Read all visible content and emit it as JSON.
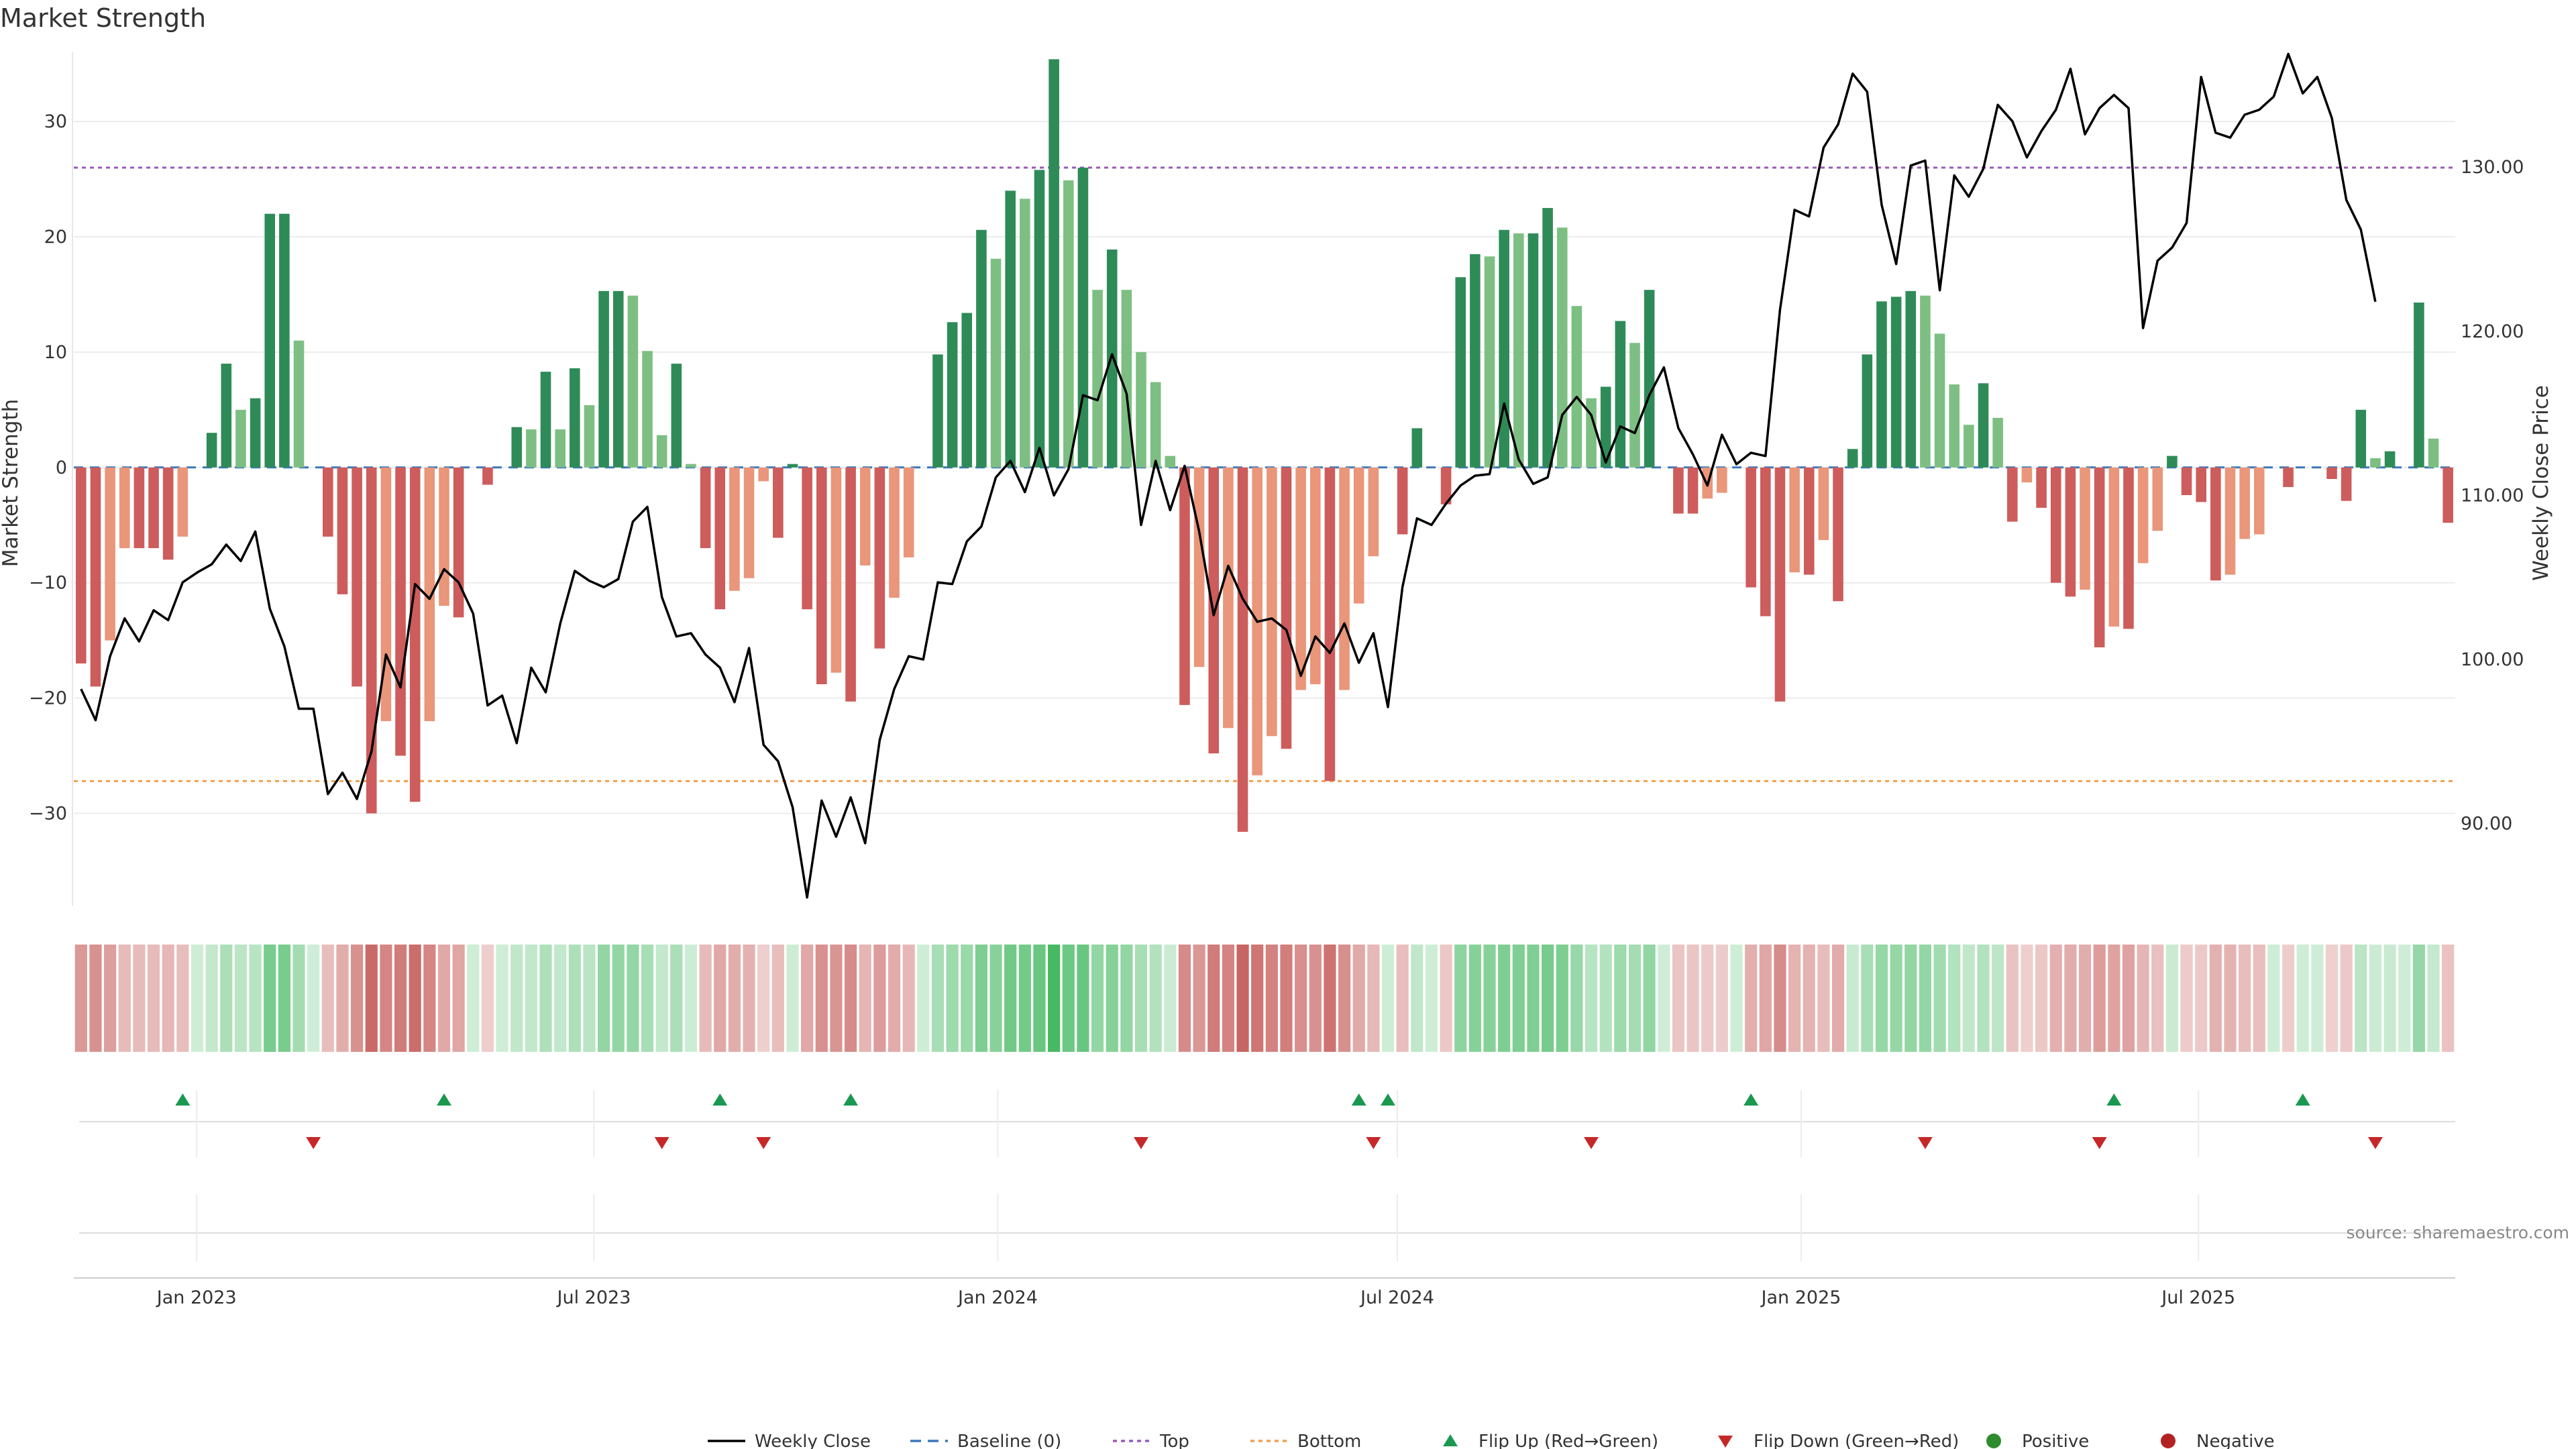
{
  "chart_data": {
    "type": "bar",
    "title": "Market Strength",
    "ylabel": "Market Strength",
    "y2label": "Weekly Close Price",
    "ylim": [
      -38,
      36
    ],
    "y2lim": [
      85,
      137
    ],
    "yticks": [
      30,
      20,
      10,
      0,
      -10,
      -20,
      -30
    ],
    "y2ticks": [
      "130.00",
      "120.00",
      "110.00",
      "100.00",
      "90.00"
    ],
    "y2tick_values": [
      130,
      120,
      110,
      100,
      90
    ],
    "top_level": 26,
    "bottom_level": -27.2,
    "baseline": 0,
    "x_start": "2022-11-06",
    "x_end": "2025-10-26",
    "x_tick_labels": [
      "Jan 2023",
      "Jul 2023",
      "Jan 2024",
      "Jul 2024",
      "Jan 2025",
      "Jul 2025"
    ],
    "x_tick_dates": [
      "2023-01-01",
      "2023-07-01",
      "2024-01-01",
      "2024-07-01",
      "2025-01-01",
      "2025-07-01"
    ],
    "strength": [
      -17,
      -19,
      -15,
      -7,
      -7,
      -7,
      -8,
      -6,
      0,
      3,
      9,
      5,
      6,
      22,
      22,
      11,
      0,
      -6,
      -11,
      -19,
      -30,
      -22,
      -25,
      -29,
      -22,
      -12,
      -13,
      0,
      -1.5,
      0,
      3.5,
      3.3,
      8.3,
      3.3,
      8.6,
      5.4,
      15.3,
      15.3,
      14.9,
      10.1,
      2.8,
      9,
      0.3,
      -7,
      -12.3,
      -10.7,
      -9.6,
      -1.2,
      -6.1,
      0.3,
      -12.3,
      -18.8,
      -17.8,
      -20.3,
      -8.5,
      -15.7,
      -11.3,
      -7.8,
      0,
      9.8,
      12.6,
      13.4,
      20.6,
      18.1,
      24,
      23.3,
      25.8,
      35.4,
      24.9,
      26,
      15.4,
      18.9,
      15.4,
      10,
      7.4,
      1,
      -20.6,
      -17.3,
      -24.8,
      -22.6,
      -31.6,
      -26.7,
      -23.3,
      -24.4,
      -19.3,
      -18.8,
      -27.2,
      -19.3,
      -11.8,
      -7.7,
      0,
      -5.8,
      3.4,
      0,
      -3.2,
      16.5,
      18.5,
      18.3,
      20.6,
      20.3,
      20.3,
      22.5,
      20.8,
      14,
      6,
      7,
      12.7,
      10.8,
      15.4,
      0,
      -4,
      -4,
      -2.7,
      -2.2,
      0,
      -10.4,
      -12.9,
      -20.3,
      -9.1,
      -9.3,
      -6.3,
      -11.6,
      1.6,
      9.8,
      14.4,
      14.8,
      15.3,
      14.9,
      11.6,
      7.2,
      3.7,
      7.3,
      4.3,
      -4.7,
      -1.3,
      -3.5,
      -10,
      -11.2,
      -10.6,
      -15.6,
      -13.8,
      -14,
      -8.3,
      -5.5,
      1,
      -2.4,
      -3,
      -9.8,
      -9.3,
      -6.2,
      -5.8,
      0,
      -1.7,
      0,
      0,
      -1,
      -2.9,
      5,
      0.8,
      1.4,
      0,
      14.3,
      2.5,
      -4.8
    ],
    "close": [
      98.2,
      96.3,
      100.2,
      102.5,
      101.1,
      103,
      102.4,
      104.7,
      105.3,
      105.8,
      107,
      106,
      107.8,
      103.1,
      100.8,
      97,
      97,
      91.8,
      93.1,
      91.5,
      94.4,
      100.3,
      98.3,
      104.6,
      103.7,
      105.5,
      104.7,
      102.8,
      97.2,
      97.8,
      94.9,
      99.5,
      98,
      102.2,
      105.4,
      104.8,
      104.4,
      104.9,
      108.4,
      109.3,
      103.8,
      101.4,
      101.6,
      100.3,
      99.5,
      97.4,
      100.7,
      94.8,
      93.8,
      91,
      85.5,
      91.4,
      89.2,
      91.6,
      88.8,
      95.1,
      98.2,
      100.2,
      100,
      104.7,
      104.6,
      107.2,
      108.1,
      111.1,
      112.1,
      110.2,
      112.9,
      110,
      111.6,
      116.1,
      115.8,
      118.6,
      116.2,
      108.2,
      112.1,
      109.1,
      111.8,
      107.8,
      102.7,
      105.7,
      103.7,
      102.3,
      102.5,
      101.8,
      99,
      101.4,
      100.4,
      102.2,
      99.8,
      101.6,
      97.1,
      104.4,
      108.6,
      108.2,
      109.5,
      110.6,
      111.2,
      111.3,
      115.6,
      112.2,
      110.7,
      111.1,
      114.9,
      116,
      114.9,
      112,
      114.2,
      113.8,
      116.1,
      117.8,
      114.1,
      112.5,
      110.6,
      113.7,
      111.9,
      112.6,
      112.4,
      121.3,
      127.4,
      127,
      131.2,
      132.6,
      135.7,
      134.6,
      127.7,
      124.1,
      130.1,
      130.4,
      122.5,
      129.5,
      128.2,
      129.9,
      133.8,
      132.8,
      130.6,
      132.2,
      133.5,
      136,
      132,
      133.6,
      134.4,
      133.6,
      120.2,
      124.3,
      125.1,
      126.6,
      135.5,
      132.1,
      131.8,
      133.2,
      133.5,
      134.3,
      136.9,
      134.5,
      135.5,
      133,
      128,
      126.2,
      121.8
    ]
  },
  "heatmap_label": "",
  "flip_up_weeks": [
    7,
    25,
    44,
    53,
    88,
    90,
    115,
    140,
    153
  ],
  "flip_down_weeks": [
    16,
    40,
    47,
    73,
    89,
    104,
    127,
    139,
    158
  ],
  "legend": {
    "weekly_close": "Weekly Close",
    "baseline": "Baseline (0)",
    "top": "Top",
    "bottom": "Bottom",
    "flip_up": "Flip Up (Red→Green)",
    "flip_down": "Flip Down (Green→Red)",
    "positive": "Positive",
    "negative": "Negative"
  },
  "colors": {
    "strong_green": "#2e8b57",
    "light_green": "#7dbf82",
    "strong_red": "#cd5c5c",
    "light_red": "#e9967a",
    "close_line": "#000000",
    "top_line": "#9b59b6",
    "bottom_line": "#f0a050",
    "baseline": "#3a78b8",
    "flip_up": "#1a9850",
    "flip_down": "#c62828",
    "positive_dot": "#2e8b2e",
    "negative_dot": "#b22222"
  },
  "source": "source: sharemaestro.com"
}
